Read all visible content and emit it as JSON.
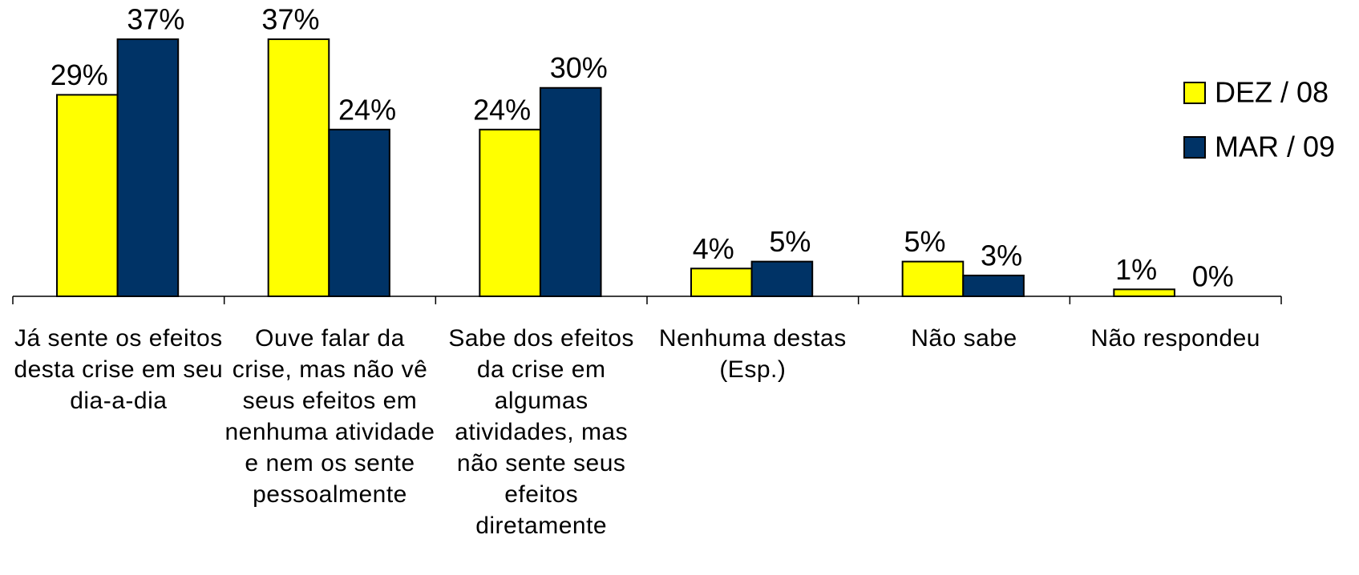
{
  "chart_data": {
    "type": "bar",
    "categories": [
      "Já sente os efeitos desta crise em seu dia-a-dia",
      "Ouve falar da crise, mas não vê seus efeitos em nenhuma atividade e nem os sente pessoalmente",
      "Sabe dos efeitos da crise em algumas atividades, mas não sente seus efeitos diretamente",
      "Nenhuma destas (Esp.)",
      "Não sabe",
      "Não respondeu"
    ],
    "series": [
      {
        "name": "DEZ / 08",
        "color": "#ffff00",
        "values": [
          29,
          37,
          24,
          4,
          5,
          1
        ],
        "value_labels": [
          "29%",
          "37%",
          "24%",
          "4%",
          "5%",
          "1%"
        ]
      },
      {
        "name": "MAR / 09",
        "color": "#003366",
        "values": [
          37,
          24,
          30,
          5,
          3,
          0
        ],
        "value_labels": [
          "37%",
          "24%",
          "30%",
          "5%",
          "3%",
          "0%"
        ]
      }
    ],
    "legend": "right"
  }
}
